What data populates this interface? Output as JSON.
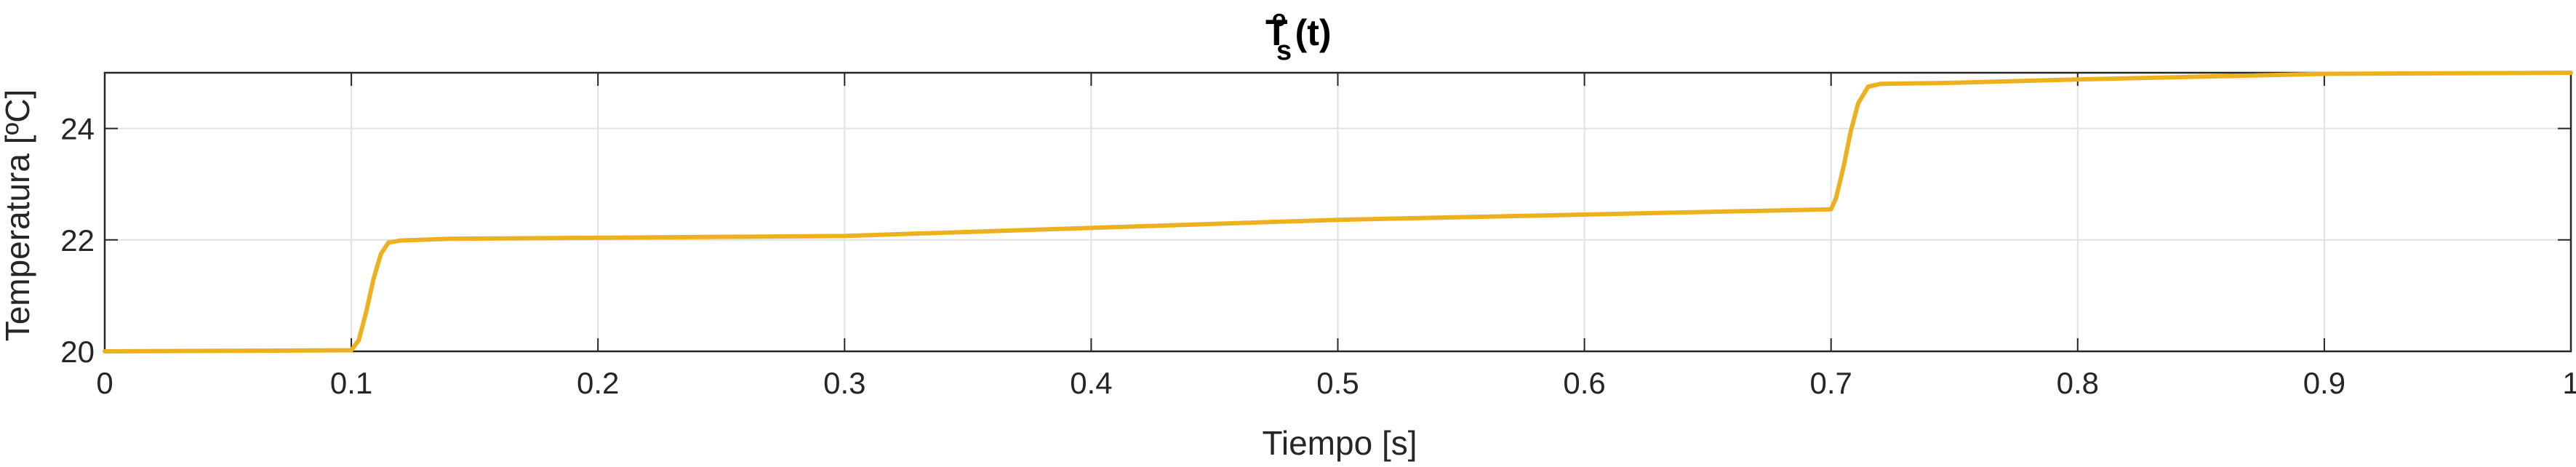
{
  "chart_data": {
    "type": "line",
    "title": {
      "main": "T",
      "superscript": "o",
      "subscript": "s",
      "suffix": " (t)"
    },
    "xlabel": "Tiempo [s]",
    "ylabel": "Temperatura [ºC]",
    "xlim": [
      0,
      1
    ],
    "ylim": [
      20,
      25
    ],
    "x_ticks": [
      "0",
      "0.1",
      "0.2",
      "0.3",
      "0.4",
      "0.5",
      "0.6",
      "0.7",
      "0.8",
      "0.9",
      "1"
    ],
    "y_ticks": [
      "20",
      "22",
      "24"
    ],
    "grid": true,
    "series": [
      {
        "color": "#EDB120",
        "x": [
          0,
          0.1,
          0.103,
          0.106,
          0.109,
          0.112,
          0.115,
          0.12,
          0.14,
          0.3,
          0.5,
          0.7,
          0.702,
          0.705,
          0.708,
          0.711,
          0.715,
          0.72,
          0.75,
          0.8,
          0.9,
          1.0
        ],
        "y": [
          20.0,
          20.02,
          20.2,
          20.7,
          21.3,
          21.75,
          21.95,
          21.99,
          22.02,
          22.07,
          22.36,
          22.55,
          22.75,
          23.3,
          23.95,
          24.45,
          24.75,
          24.8,
          24.82,
          24.88,
          24.98,
          25.0
        ]
      }
    ]
  }
}
